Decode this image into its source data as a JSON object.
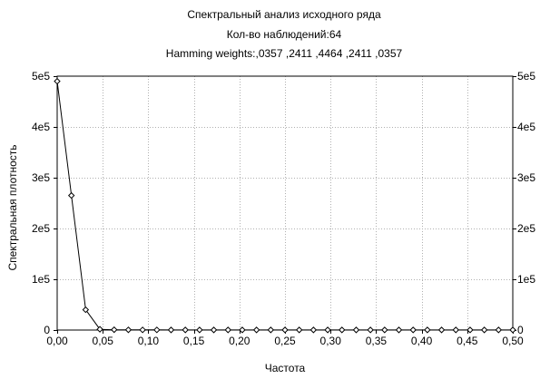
{
  "chart_data": {
    "type": "line",
    "title": "Спектральный анализ исходного ряда",
    "subtitle_lines": [
      "Кол-во наблюдений:64",
      "Hamming weights:,0357 ,2411 ,4464 ,2411 ,0357"
    ],
    "xlabel": "Частота",
    "ylabel": "Спектральная плотность",
    "xlim": [
      0,
      0.5
    ],
    "ylim": [
      0,
      500000
    ],
    "x_ticks": [
      "0,00",
      "0,05",
      "0,10",
      "0,15",
      "0,20",
      "0,25",
      "0,30",
      "0,35",
      "0,40",
      "0,45",
      "0,50"
    ],
    "y_ticks": [
      "0",
      "1e5",
      "2e5",
      "3e5",
      "4e5",
      "5e5"
    ],
    "grid": true,
    "marker": "diamond",
    "series": [
      {
        "x": [
          0.0,
          0.015625,
          0.03125,
          0.046875,
          0.0625,
          0.078125,
          0.09375,
          0.109375,
          0.125,
          0.140625,
          0.15625,
          0.171875,
          0.1875,
          0.203125,
          0.21875,
          0.234375,
          0.25,
          0.265625,
          0.28125,
          0.296875,
          0.3125,
          0.328125,
          0.34375,
          0.359375,
          0.375,
          0.390625,
          0.40625,
          0.421875,
          0.4375,
          0.453125,
          0.46875,
          0.484375,
          0.5
        ],
        "y": [
          490000,
          265000,
          40000,
          1500,
          600,
          400,
          300,
          300,
          250,
          250,
          200,
          200,
          200,
          200,
          200,
          200,
          200,
          200,
          200,
          200,
          200,
          200,
          200,
          200,
          200,
          200,
          200,
          200,
          200,
          200,
          200,
          200,
          200
        ]
      }
    ]
  }
}
